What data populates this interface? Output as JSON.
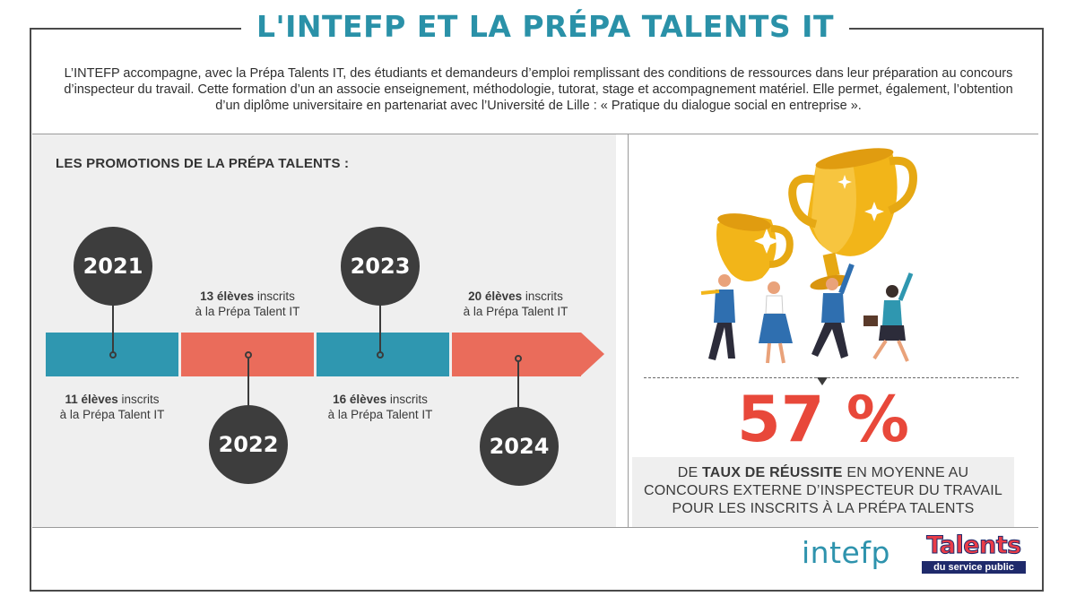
{
  "title": "L'INTEFP ET LA PRÉPA TALENTS IT",
  "intro": "L’INTEFP accompagne, avec la Prépa Talents IT, des étudiants et demandeurs d’emploi remplissant des conditions de ressources dans leur préparation au concours d’inspecteur du travail. Cette formation d’un an associe enseignement, méthodologie, tutorat, stage et accompagnement matériel. Elle permet, également, l’obtention d’un diplôme universitaire en partenariat avec l’Université de Lille : « Pratique du dialogue social en entreprise ».",
  "timeline": {
    "section_title": "LES PROMOTIONS DE LA PRÉPA TALENTS :",
    "colors": {
      "teal": "#2f97b0",
      "coral": "#ea6c5b",
      "year_circle": "#3d3d3d"
    },
    "promotions": [
      {
        "year": "2021",
        "count": "11 élèves",
        "rest": "inscrits",
        "line2": "à la Prépa Talent IT"
      },
      {
        "year": "2022",
        "count": "13 élèves",
        "rest": "inscrits",
        "line2": "à la Prépa Talent IT"
      },
      {
        "year": "2023",
        "count": "16 élèves",
        "rest": "inscrits",
        "line2": "à la Prépa Talent IT"
      },
      {
        "year": "2024",
        "count": "20 élèves",
        "rest": "inscrits",
        "line2": "à la Prépa Talent IT"
      }
    ]
  },
  "stat": {
    "value": "57 %",
    "prefix": "DE",
    "bold": "TAUX DE RÉUSSITE",
    "suffix": "EN MOYENNE AU",
    "line2": "CONCOURS EXTERNE D’INSPECTEUR DU TRAVAIL",
    "line3": "POUR LES INSCRITS À LA PRÉPA TALENTS",
    "color": "#e8483a"
  },
  "logos": {
    "intefp": "intefp",
    "talents_main": "Talents",
    "talents_sub": "du service public"
  },
  "illustration": "trophy-team-icon"
}
